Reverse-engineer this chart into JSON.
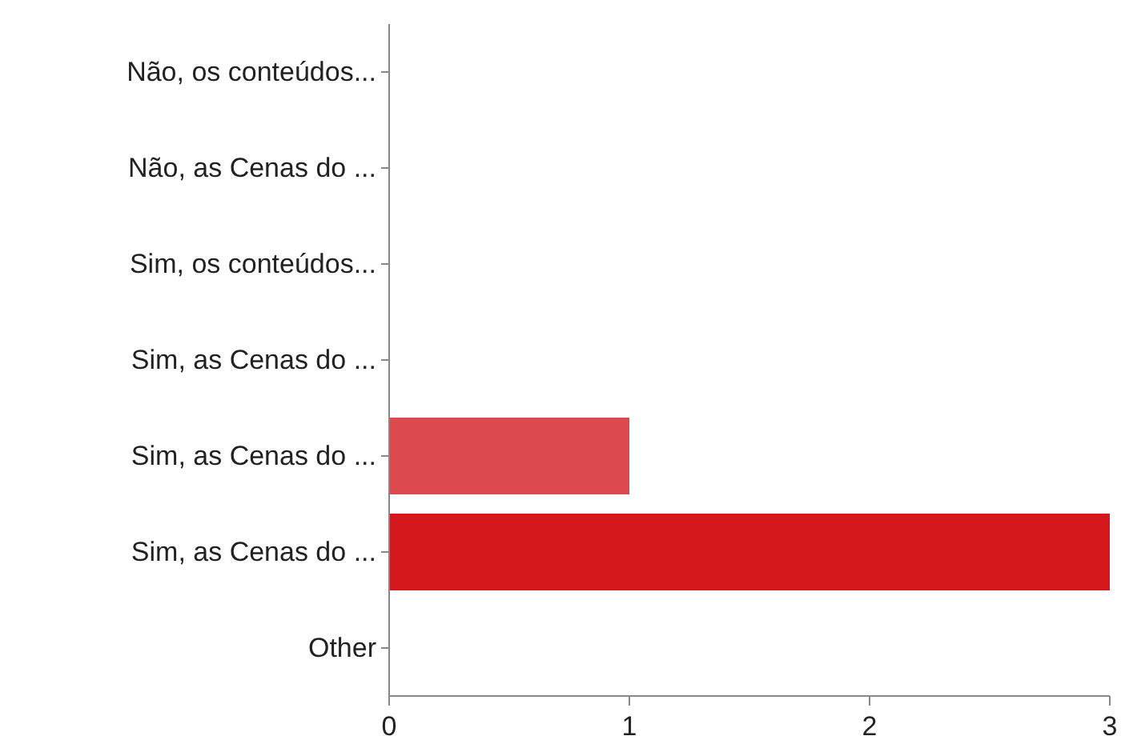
{
  "chart_data": {
    "type": "bar",
    "orientation": "horizontal",
    "categories": [
      "Não, os conteúdos...",
      "Não, as Cenas do ...",
      "Sim, os conteúdos...",
      "Sim, as Cenas do ...",
      "Sim, as Cenas do ...",
      "Sim, as Cenas do ...",
      "Other"
    ],
    "values": [
      0,
      0,
      0,
      0,
      1,
      3,
      0
    ],
    "colors": [
      "#d5181c",
      "#d5181c",
      "#d5181c",
      "#d5181c",
      "#dc4a4f",
      "#d5181c",
      "#d5181c"
    ],
    "xlim": [
      0,
      3
    ],
    "xticks": [
      0,
      1,
      2,
      3
    ]
  }
}
